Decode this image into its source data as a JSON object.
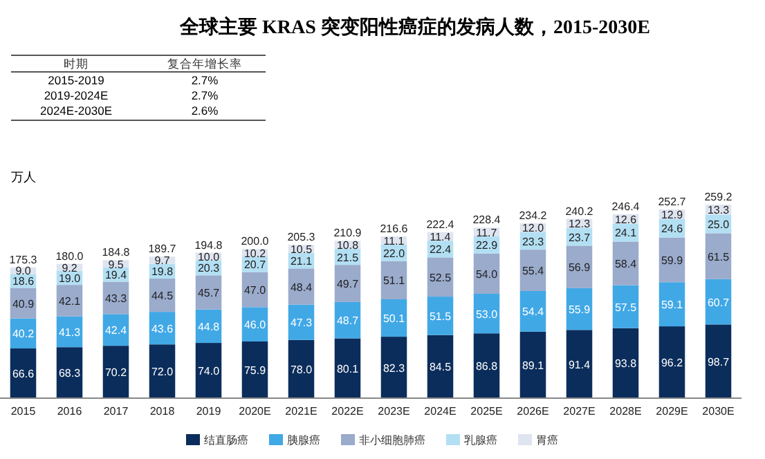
{
  "chart_data": {
    "type": "bar",
    "title": "全球主要 KRAS 突变阳性癌症的发病人数，2015-2030E",
    "ylabel": "万人",
    "stacked": true,
    "legend": "bottom",
    "categories": [
      "2015",
      "2016",
      "2017",
      "2018",
      "2019",
      "2020E",
      "2021E",
      "2022E",
      "2023E",
      "2024E",
      "2025E",
      "2026E",
      "2027E",
      "2028E",
      "2029E",
      "2030E"
    ],
    "series": [
      {
        "name": "结直肠癌",
        "color": "#0b2d5b",
        "values": [
          66.6,
          68.3,
          70.2,
          72.0,
          74.0,
          75.9,
          78.0,
          80.1,
          82.3,
          84.5,
          86.8,
          89.1,
          91.4,
          93.8,
          96.2,
          98.7
        ],
        "value_labels": [
          "66.6",
          "68.3",
          "70.2",
          "72.0",
          "74.0",
          "75.9",
          "78.0",
          "80.1",
          "82.3",
          "84.5",
          "86.8",
          "89.1",
          "91.4",
          "93.8",
          "96.2",
          "98.7"
        ]
      },
      {
        "name": "胰腺癌",
        "color": "#41a8e6",
        "values": [
          40.2,
          41.3,
          42.4,
          43.6,
          44.8,
          46.0,
          47.3,
          48.7,
          50.1,
          51.5,
          53.0,
          54.4,
          55.9,
          57.5,
          59.1,
          60.7
        ],
        "value_labels": [
          "40.2",
          "41.3",
          "42.4",
          "43.6",
          "44.8",
          "46.0",
          "47.3",
          "48.7",
          "50.1",
          "51.5",
          "53.0",
          "54.4",
          "55.9",
          "57.5",
          "59.1",
          "60.7"
        ]
      },
      {
        "name": "非小细胞肺癌",
        "color": "#9aabcc",
        "values": [
          40.9,
          42.1,
          43.3,
          44.5,
          45.7,
          47.0,
          48.4,
          49.7,
          51.1,
          52.5,
          54.0,
          55.4,
          56.9,
          58.4,
          59.9,
          61.5
        ],
        "value_labels": [
          "40.9",
          "42.1",
          "43.3",
          "44.5",
          "45.7",
          "47.0",
          "48.4",
          "49.7",
          "51.1",
          "52.5",
          "54.0",
          "55.4",
          "56.9",
          "58.4",
          "59.9",
          "61.5"
        ]
      },
      {
        "name": "乳腺癌",
        "color": "#b3dff3",
        "values": [
          18.6,
          19.0,
          19.4,
          19.8,
          20.3,
          20.7,
          21.1,
          21.5,
          22.0,
          22.4,
          22.9,
          23.3,
          23.7,
          24.1,
          24.6,
          25.0
        ],
        "value_labels": [
          "18.6",
          "19.0",
          "19.4",
          "19.8",
          "20.3",
          "20.7",
          "21.1",
          "21.5",
          "22.0",
          "22.4",
          "22.9",
          "23.3",
          "23.7",
          "24.1",
          "24.6",
          "25.0"
        ]
      },
      {
        "name": "胃癌",
        "color": "#dee4f0",
        "values": [
          9.0,
          9.2,
          9.5,
          9.7,
          10.0,
          10.2,
          10.5,
          10.8,
          11.1,
          11.4,
          11.7,
          12.0,
          12.3,
          12.6,
          12.9,
          13.3
        ],
        "value_labels": [
          "9.0",
          "9.2",
          "9.5",
          "9.7",
          "10.0",
          "10.2",
          "10.5",
          "10.8",
          "11.1",
          "11.4",
          "11.7",
          "12.0",
          "12.3",
          "12.6",
          "12.9",
          "13.3"
        ]
      }
    ],
    "totals": [
      "175.3",
      "180.0",
      "184.8",
      "189.7",
      "194.8",
      "200.0",
      "205.3",
      "210.9",
      "216.6",
      "222.4",
      "228.4",
      "234.2",
      "240.2",
      "246.4",
      "252.7",
      "259.2"
    ],
    "annotations": [
      "时期",
      "复合年增长率",
      "2015-2019",
      "2.7%",
      "2019-2024E",
      "2.7%",
      "2024E-2030E",
      "2.6%"
    ]
  }
}
